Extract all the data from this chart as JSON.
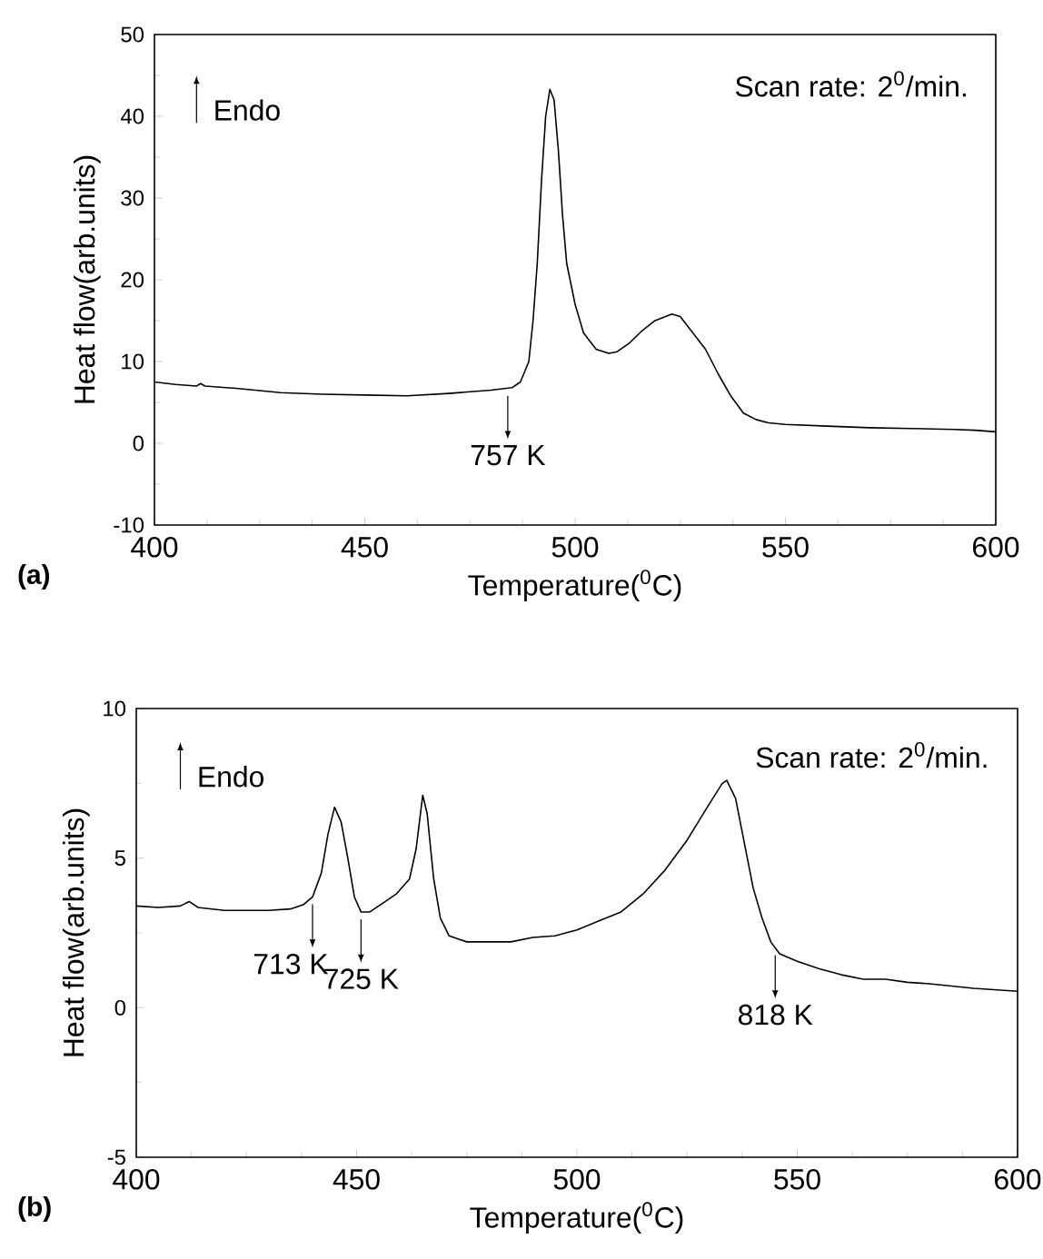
{
  "chart_data": [
    {
      "type": "line",
      "title": "(a)",
      "xlabel": "Temperature($^{0}$C)",
      "ylabel": "Heat flow(arb.units)",
      "x": [
        400,
        405,
        410,
        411,
        412,
        420,
        430,
        440,
        450,
        460,
        470,
        480,
        485,
        487,
        489,
        490,
        491,
        492,
        493,
        494,
        495,
        496,
        497,
        498,
        500,
        502,
        505,
        508,
        510,
        513,
        516,
        519,
        523,
        525,
        528,
        531,
        534,
        537,
        540,
        543,
        546,
        550,
        560,
        570,
        580,
        590,
        595,
        600
      ],
      "values": [
        7.5,
        7.2,
        7.0,
        7.3,
        7.0,
        6.7,
        6.2,
        6.0,
        5.9,
        5.8,
        6.1,
        6.5,
        6.8,
        7.5,
        10,
        15,
        22,
        32,
        40,
        43.3,
        42,
        36,
        28,
        22,
        17,
        13.5,
        11.5,
        11,
        11.2,
        12.3,
        13.8,
        15,
        15.8,
        15.5,
        13.5,
        11.5,
        8.5,
        5.8,
        3.7,
        2.9,
        2.5,
        2.3,
        2.1,
        1.9,
        1.8,
        1.7,
        1.6,
        1.4
      ],
      "color": "#000000",
      "xlim": [
        400,
        600
      ],
      "ylim": [
        -10,
        50
      ],
      "xticks": [
        400,
        450,
        500,
        550,
        600
      ],
      "yticks": [
        -10,
        0,
        10,
        20,
        30,
        40,
        50
      ],
      "annotations": [
        "Endo",
        "Scan rate: 2$^{0}$/min.",
        {
          "text": "757 K",
          "x": 484,
          "y": 6.7
        }
      ]
    },
    {
      "type": "line",
      "title": "(b)",
      "xlabel": "Temperature($^{0}$C)",
      "ylabel": "Heat flow(arb.units)",
      "x": [
        400,
        405,
        410,
        412,
        414,
        420,
        430,
        435,
        438,
        440,
        442,
        443.5,
        445,
        446.5,
        448,
        449.5,
        451,
        453,
        456,
        459,
        462,
        463.5,
        465,
        466,
        467.5,
        469,
        471,
        475,
        480,
        485,
        490,
        495,
        500,
        505,
        510,
        515,
        520,
        525,
        530,
        533,
        534,
        536,
        538,
        540,
        542,
        544,
        546,
        550,
        555,
        560,
        565,
        570,
        575,
        580,
        590,
        600
      ],
      "values": [
        3.4,
        3.35,
        3.4,
        3.55,
        3.35,
        3.25,
        3.25,
        3.3,
        3.45,
        3.7,
        4.5,
        5.8,
        6.7,
        6.2,
        5.0,
        3.7,
        3.2,
        3.2,
        3.5,
        3.8,
        4.3,
        5.3,
        7.1,
        6.5,
        4.3,
        3.0,
        2.4,
        2.2,
        2.2,
        2.2,
        2.35,
        2.4,
        2.6,
        2.9,
        3.2,
        3.8,
        4.6,
        5.6,
        6.8,
        7.5,
        7.6,
        7.0,
        5.5,
        4.0,
        3.0,
        2.2,
        1.8,
        1.55,
        1.3,
        1.1,
        0.95,
        0.95,
        0.85,
        0.8,
        0.65,
        0.55
      ],
      "color": "#000000",
      "xlim": [
        400,
        600
      ],
      "ylim": [
        -5,
        10
      ],
      "xticks": [
        400,
        450,
        500,
        550,
        600
      ],
      "yticks": [
        -5,
        0,
        5,
        10
      ],
      "annotations": [
        "Endo",
        "Scan rate: 2$^{0}$/min.",
        {
          "text": "713 K",
          "x": 440,
          "y": 3.7
        },
        {
          "text": "725 K",
          "x": 451,
          "y": 3.2
        },
        {
          "text": "818 K",
          "x": 545,
          "y": 2.0
        }
      ]
    }
  ]
}
